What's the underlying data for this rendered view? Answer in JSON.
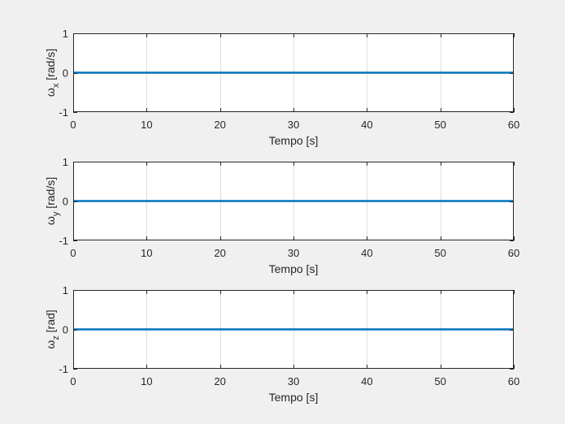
{
  "chart_data": [
    {
      "type": "line",
      "ylabel": {
        "symbol": "ω",
        "subscript": "x",
        "unit": " [rad/s]"
      },
      "xlabel": "Tempo [s]",
      "xlim": [
        0,
        60
      ],
      "ylim": [
        -1,
        1
      ],
      "xticks": [
        0,
        10,
        20,
        30,
        40,
        50,
        60
      ],
      "yticks": [
        -1,
        0,
        1
      ],
      "grid": "vertical",
      "series": [
        {
          "x": [
            0,
            60
          ],
          "y": [
            0,
            0
          ],
          "color": "#0072bd"
        }
      ]
    },
    {
      "type": "line",
      "ylabel": {
        "symbol": "ω",
        "subscript": "y",
        "unit": " [rad/s]"
      },
      "xlabel": "Tempo [s]",
      "xlim": [
        0,
        60
      ],
      "ylim": [
        -1,
        1
      ],
      "xticks": [
        0,
        10,
        20,
        30,
        40,
        50,
        60
      ],
      "yticks": [
        -1,
        0,
        1
      ],
      "grid": "vertical",
      "series": [
        {
          "x": [
            0,
            60
          ],
          "y": [
            0,
            0
          ],
          "color": "#0072bd"
        }
      ]
    },
    {
      "type": "line",
      "ylabel": {
        "symbol": "ω",
        "subscript": "z",
        "unit": " [rad]"
      },
      "xlabel": "Tempo [s]",
      "xlim": [
        0,
        60
      ],
      "ylim": [
        -1,
        1
      ],
      "xticks": [
        0,
        10,
        20,
        30,
        40,
        50,
        60
      ],
      "yticks": [
        -1,
        0,
        1
      ],
      "grid": "vertical",
      "series": [
        {
          "x": [
            0,
            60
          ],
          "y": [
            0,
            0
          ],
          "color": "#0072bd"
        }
      ]
    }
  ]
}
